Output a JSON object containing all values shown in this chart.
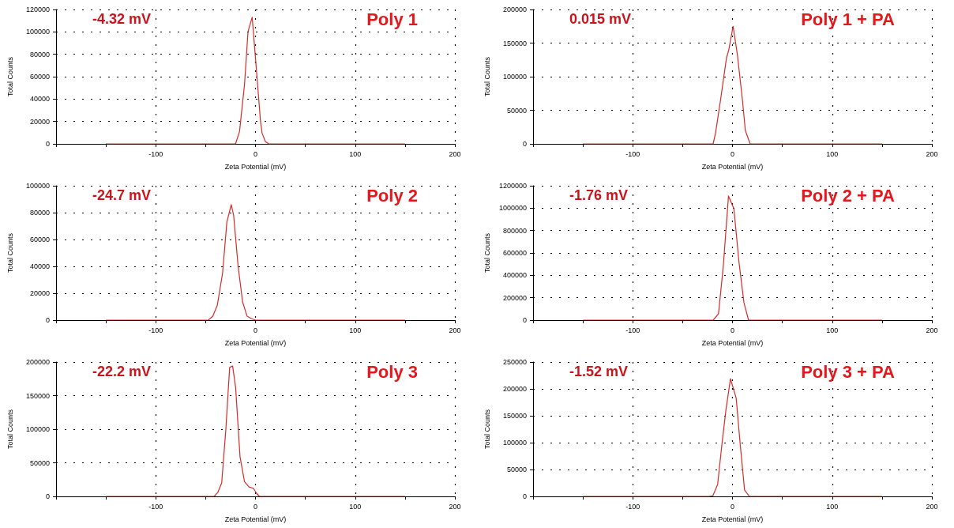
{
  "chart_data": [
    {
      "type": "line",
      "title": "Poly 1",
      "annotations": [
        "-4.32 mV"
      ],
      "xlabel": "Zeta Potential (mV)",
      "ylabel": "Total Counts",
      "xlim": [
        -200,
        200
      ],
      "ylim": [
        0,
        120000
      ],
      "xticks": [
        {
          "value": -200,
          "label": null
        },
        {
          "value": -150,
          "label": null
        },
        -100,
        {
          "value": -50,
          "label": null
        },
        0,
        {
          "value": 50,
          "label": null
        },
        100,
        {
          "value": 150,
          "label": null
        },
        200
      ],
      "yticks": [
        0,
        20000,
        40000,
        60000,
        80000,
        100000,
        120000
      ],
      "grid": true,
      "marker": "none",
      "line_style": "solid",
      "series": [
        {
          "color": "#d62a2a",
          "x": [
            -150,
            -20,
            -16,
            -11,
            -7.5,
            -6.3,
            -3.3,
            1.5,
            5,
            6.6,
            10,
            13.4,
            150
          ],
          "values": [
            0,
            0,
            11000,
            53000,
            100000,
            104000,
            113000,
            60000,
            20500,
            9600,
            2000,
            0,
            0
          ]
        }
      ]
    },
    {
      "type": "line",
      "title": "Poly 1 + PA",
      "annotations": [
        "0.015 mV"
      ],
      "xlabel": "Zeta Potential (mV)",
      "ylabel": "Total Counts",
      "xlim": [
        -200,
        200
      ],
      "ylim": [
        0,
        200000
      ],
      "xticks": [
        {
          "value": -200,
          "label": null
        },
        {
          "value": -150,
          "label": null
        },
        -100,
        {
          "value": -50,
          "label": null
        },
        0,
        {
          "value": 50,
          "label": null
        },
        100,
        {
          "value": 150,
          "label": null
        },
        200
      ],
      "yticks": [
        0,
        50000,
        100000,
        150000,
        200000
      ],
      "grid": true,
      "marker": "none",
      "line_style": "solid",
      "series": [
        {
          "color": "#d62a2a",
          "x": [
            -150,
            -19.4,
            -17,
            -12,
            -6,
            -3.7,
            0.6,
            4.9,
            10,
            12.9,
            17.7,
            150
          ],
          "values": [
            0,
            0,
            16000,
            65000,
            128000,
            140000,
            175000,
            133000,
            65000,
            20000,
            0,
            0
          ]
        }
      ]
    },
    {
      "type": "line",
      "title": "Poly 2",
      "annotations": [
        "-24.7 mV"
      ],
      "xlabel": "Zeta Potential (mV)",
      "ylabel": "Total Counts",
      "xlim": [
        -200,
        200
      ],
      "ylim": [
        0,
        100000
      ],
      "xticks": [
        {
          "value": -200,
          "label": null
        },
        {
          "value": -150,
          "label": null
        },
        -100,
        {
          "value": -50,
          "label": null
        },
        0,
        {
          "value": 50,
          "label": null
        },
        100,
        {
          "value": 150,
          "label": null
        },
        200
      ],
      "yticks": [
        0,
        20000,
        40000,
        60000,
        80000,
        100000
      ],
      "grid": true,
      "marker": "none",
      "line_style": "solid",
      "series": [
        {
          "color": "#d62a2a",
          "x": [
            -150,
            -47.3,
            -42.8,
            -38.3,
            -33,
            -28.7,
            -26.3,
            -24.3,
            -21.9,
            -17.4,
            -12.9,
            -8.4,
            -3.9,
            0,
            150
          ],
          "values": [
            0,
            0,
            2900,
            11000,
            35000,
            73000,
            80000,
            86000,
            78000,
            40000,
            13500,
            2900,
            1000,
            0,
            0
          ]
        }
      ]
    },
    {
      "type": "line",
      "title": "Poly 2 + PA",
      "annotations": [
        "-1.76 mV"
      ],
      "xlabel": "Zeta Potential (mV)",
      "ylabel": "Total Counts",
      "xlim": [
        -200,
        200
      ],
      "ylim": [
        0,
        1200000
      ],
      "xticks": [
        {
          "value": -200,
          "label": null
        },
        {
          "value": -150,
          "label": null
        },
        -100,
        {
          "value": -50,
          "label": null
        },
        0,
        {
          "value": 50,
          "label": null
        },
        100,
        {
          "value": 150,
          "label": null
        },
        200
      ],
      "yticks": [
        0,
        200000,
        400000,
        600000,
        800000,
        1000000,
        1200000
      ],
      "grid": true,
      "marker": "none",
      "line_style": "solid",
      "series": [
        {
          "color": "#d62a2a",
          "x": [
            -150,
            -19.3,
            -14,
            -9.2,
            -4,
            1.4,
            6.6,
            11.5,
            16.1,
            150
          ],
          "values": [
            0,
            0,
            57000,
            483000,
            1109000,
            995000,
            512000,
            156000,
            0,
            0
          ]
        }
      ]
    },
    {
      "type": "line",
      "title": "Poly 3",
      "annotations": [
        "-22.2 mV"
      ],
      "xlabel": "Zeta Potential (mV)",
      "ylabel": "Total Counts",
      "xlim": [
        -200,
        200
      ],
      "ylim": [
        0,
        200000
      ],
      "xticks": [
        {
          "value": -200,
          "label": null
        },
        {
          "value": -150,
          "label": null
        },
        -100,
        {
          "value": -50,
          "label": null
        },
        0,
        {
          "value": 50,
          "label": null
        },
        100,
        {
          "value": 150,
          "label": null
        },
        200
      ],
      "yticks": [
        0,
        50000,
        100000,
        150000,
        200000
      ],
      "grid": true,
      "marker": "none",
      "line_style": "solid",
      "series": [
        {
          "color": "#d62a2a",
          "x": [
            -150,
            -41.4,
            -37.8,
            -33.9,
            -29.8,
            -25.9,
            -22.9,
            -19.9,
            -15.5,
            -11,
            -6.5,
            -2.1,
            0.9,
            3.9,
            150
          ],
          "values": [
            0,
            0,
            6000,
            20000,
            98000,
            192000,
            194000,
            162000,
            59000,
            22000,
            14000,
            12000,
            5000,
            0,
            0
          ]
        }
      ]
    },
    {
      "type": "line",
      "title": "Poly 3 + PA",
      "annotations": [
        "-1.52 mV"
      ],
      "xlabel": "Zeta Potential (mV)",
      "ylabel": "Total Counts",
      "xlim": [
        -200,
        200
      ],
      "ylim": [
        0,
        250000
      ],
      "xticks": [
        {
          "value": -200,
          "label": null
        },
        {
          "value": -150,
          "label": null
        },
        -100,
        {
          "value": -50,
          "label": null
        },
        0,
        {
          "value": 50,
          "label": null
        },
        100,
        {
          "value": 150,
          "label": null
        },
        200
      ],
      "yticks": [
        0,
        50000,
        100000,
        150000,
        200000,
        250000
      ],
      "grid": true,
      "marker": "none",
      "line_style": "solid",
      "series": [
        {
          "color": "#d62a2a",
          "x": [
            -150,
            -23.9,
            -19.7,
            -14.9,
            -10.4,
            -6.5,
            -2,
            3.7,
            7.6,
            12.1,
            16.9,
            150
          ],
          "values": [
            0,
            0,
            1000,
            22000,
            100000,
            162000,
            219000,
            183000,
            100000,
            12000,
            0,
            0
          ]
        }
      ]
    }
  ]
}
